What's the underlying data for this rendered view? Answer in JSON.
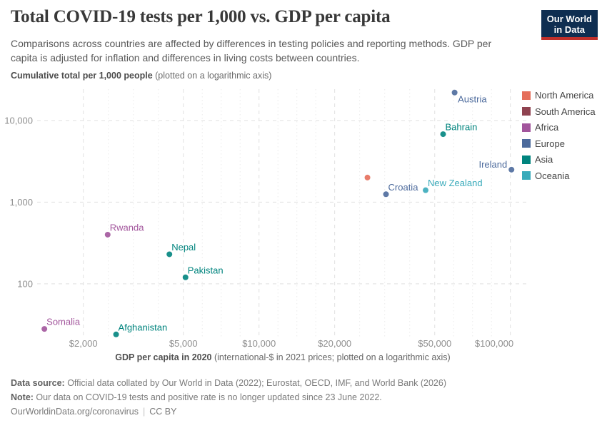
{
  "header": {
    "title": "Total COVID-19 tests per 1,000 vs. GDP per capita",
    "subtitle": "Comparisons across countries are affected by differences in testing policies and reporting methods. GDP per capita is adjusted for inflation and differences in living costs between countries.",
    "logo": {
      "line1": "Our World",
      "line2": "in Data",
      "bg_color": "#0f2e51",
      "accent_color": "#c0302b"
    }
  },
  "chart_data": {
    "type": "scatter",
    "title": "Total COVID-19 tests per 1,000 vs. GDP per capita",
    "ylabel_bold": "Cumulative total per 1,000 people",
    "ylabel_note": " (plotted on a logarithmic axis)",
    "xlabel_bold": "GDP per capita in 2020",
    "xlabel_note": " (international-$ in 2021 prices; plotted on a logarithmic axis)",
    "x_scale": "log",
    "y_scale": "log",
    "x_domain": [
      1310,
      118000
    ],
    "y_domain": [
      22.5,
      24200
    ],
    "x_ticks": [
      {
        "value": 2000,
        "label": "$2,000"
      },
      {
        "value": 5000,
        "label": "$5,000"
      },
      {
        "value": 10000,
        "label": "$10,000"
      },
      {
        "value": 20000,
        "label": "$20,000"
      },
      {
        "value": 50000,
        "label": "$50,000"
      },
      {
        "value": 100000,
        "label": "$100,000"
      }
    ],
    "y_ticks": [
      {
        "value": 100,
        "label": "100"
      },
      {
        "value": 1000,
        "label": "1,000"
      },
      {
        "value": 10000,
        "label": "10,000"
      }
    ],
    "grid": true,
    "legend_position": "right",
    "legend_order": [
      "North America",
      "South America",
      "Africa",
      "Europe",
      "Asia",
      "Oceania"
    ],
    "continent_colors": {
      "North America": "#e56e5a",
      "South America": "#8f4350",
      "Africa": "#a2559c",
      "Europe": "#4c6a9c",
      "Asia": "#00847e",
      "Oceania": "#38aaba"
    },
    "points": [
      {
        "country": "Austria",
        "continent": "Europe",
        "gdp_per_capita": 60000,
        "tests_per_1000": 22000,
        "label_pos": "below-right"
      },
      {
        "country": "Bahrain",
        "continent": "Asia",
        "gdp_per_capita": 54000,
        "tests_per_1000": 6800,
        "label_pos": "above-right"
      },
      {
        "country": "Ireland",
        "continent": "Europe",
        "gdp_per_capita": 101000,
        "tests_per_1000": 2500,
        "label_pos": "left"
      },
      {
        "country": "",
        "continent": "North America",
        "gdp_per_capita": 27000,
        "tests_per_1000": 2000,
        "label_pos": "none"
      },
      {
        "country": "New Zealand",
        "continent": "Oceania",
        "gdp_per_capita": 46000,
        "tests_per_1000": 1400,
        "label_pos": "above-right"
      },
      {
        "country": "Croatia",
        "continent": "Europe",
        "gdp_per_capita": 32000,
        "tests_per_1000": 1250,
        "label_pos": "above-right"
      },
      {
        "country": "Rwanda",
        "continent": "Africa",
        "gdp_per_capita": 2500,
        "tests_per_1000": 400,
        "label_pos": "above-right"
      },
      {
        "country": "Nepal",
        "continent": "Asia",
        "gdp_per_capita": 4400,
        "tests_per_1000": 230,
        "label_pos": "above-right"
      },
      {
        "country": "Pakistan",
        "continent": "Asia",
        "gdp_per_capita": 5100,
        "tests_per_1000": 120,
        "label_pos": "above-right"
      },
      {
        "country": "Somalia",
        "continent": "Africa",
        "gdp_per_capita": 1400,
        "tests_per_1000": 28,
        "label_pos": "above-right"
      },
      {
        "country": "Afghanistan",
        "continent": "Asia",
        "gdp_per_capita": 2700,
        "tests_per_1000": 24,
        "label_pos": "above-right"
      }
    ]
  },
  "footer": {
    "source_label": "Data source:",
    "source_text": " Official data collated by Our World in Data (2022); Eurostat, OECD, IMF, and World Bank (2026)",
    "note_label": "Note:",
    "note_text": " Our data on COVID-19 tests and positive rate is no longer updated since 23 June 2022.",
    "url": "OurWorldinData.org/coronavirus",
    "separator": "|",
    "license": "CC BY"
  }
}
